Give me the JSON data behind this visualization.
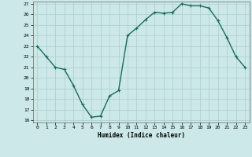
{
  "x": [
    0,
    1,
    2,
    3,
    4,
    5,
    6,
    7,
    8,
    9,
    10,
    11,
    12,
    13,
    14,
    15,
    16,
    17,
    18,
    19,
    20,
    21,
    22,
    23
  ],
  "y": [
    23.0,
    22.0,
    21.0,
    20.8,
    19.3,
    17.5,
    16.3,
    16.4,
    18.3,
    18.8,
    24.0,
    24.7,
    25.5,
    26.2,
    26.1,
    26.2,
    27.0,
    26.8,
    26.8,
    26.6,
    25.4,
    23.8,
    22.0,
    21.0
  ],
  "xlabel": "Humidex (Indice chaleur)",
  "ylim": [
    16,
    27
  ],
  "xlim": [
    -0.5,
    23.5
  ],
  "line_color": "#1a6b5a",
  "marker_color": "#1a6b5a",
  "bg_color": "#cce8e8",
  "grid_color": "#aacece",
  "tick_label_color": "#000000",
  "yticks": [
    16,
    17,
    18,
    19,
    20,
    21,
    22,
    23,
    24,
    25,
    26,
    27
  ],
  "xticks": [
    0,
    1,
    2,
    3,
    4,
    5,
    6,
    7,
    8,
    9,
    10,
    11,
    12,
    13,
    14,
    15,
    16,
    17,
    18,
    19,
    20,
    21,
    22,
    23
  ],
  "marker_size": 2.5,
  "line_width": 1.0
}
